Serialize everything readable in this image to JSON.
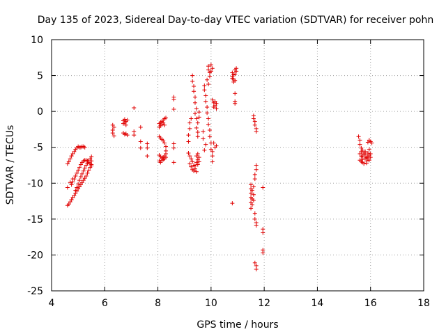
{
  "chart_data": {
    "type": "scatter",
    "title": "Day 135 of 2023, Sidereal Day-to-day VTEC variation (SDTVAR) for receiver pohn",
    "xlabel": "GPS time / hours",
    "ylabel": "SDTVAR / TECUs",
    "xlim": [
      4,
      18
    ],
    "ylim": [
      -25,
      10
    ],
    "xticks": [
      4,
      6,
      8,
      10,
      12,
      14,
      16,
      18
    ],
    "yticks": [
      -25,
      -20,
      -15,
      -10,
      -5,
      0,
      5,
      10
    ],
    "xtick_labels": [
      "4",
      "6",
      "8",
      "10",
      "12",
      "14",
      "16",
      "18"
    ],
    "ytick_labels": [
      "-25",
      "-20",
      "-15",
      "-10",
      "-5",
      "0",
      "5",
      "10"
    ],
    "grid": true,
    "legend": "none",
    "marker": "plus",
    "color": "#e00000",
    "series": [
      {
        "points": [
          [
            4.6,
            -13.1
          ],
          [
            4.65,
            -12.9
          ],
          [
            4.7,
            -12.6
          ],
          [
            4.75,
            -12.3
          ],
          [
            4.8,
            -12.0
          ],
          [
            4.85,
            -11.7
          ],
          [
            4.9,
            -11.4
          ],
          [
            4.95,
            -11.1
          ],
          [
            5.0,
            -10.8
          ],
          [
            5.05,
            -10.5
          ],
          [
            5.1,
            -10.2
          ],
          [
            5.15,
            -9.9
          ],
          [
            5.2,
            -9.6
          ],
          [
            5.25,
            -9.3
          ],
          [
            5.3,
            -9.0
          ],
          [
            5.35,
            -8.6
          ],
          [
            5.4,
            -8.2
          ],
          [
            5.45,
            -7.8
          ],
          [
            5.5,
            -7.4
          ],
          [
            5.5,
            -6.9
          ],
          [
            4.75,
            -10.2
          ],
          [
            4.8,
            -9.8
          ],
          [
            4.85,
            -9.4
          ],
          [
            4.9,
            -9.0
          ],
          [
            4.95,
            -8.6
          ],
          [
            5.0,
            -8.2
          ],
          [
            5.05,
            -7.8
          ],
          [
            5.1,
            -7.4
          ],
          [
            5.15,
            -7.1
          ],
          [
            5.2,
            -6.9
          ],
          [
            5.25,
            -6.8
          ],
          [
            5.3,
            -6.8
          ],
          [
            5.35,
            -6.9
          ],
          [
            5.4,
            -7.1
          ],
          [
            5.45,
            -7.3
          ],
          [
            5.5,
            -7.6
          ],
          [
            4.9,
            -11.0
          ],
          [
            4.95,
            -10.6
          ],
          [
            5.0,
            -10.1
          ],
          [
            5.05,
            -9.6
          ],
          [
            5.1,
            -9.1
          ],
          [
            5.15,
            -8.7
          ],
          [
            5.2,
            -8.3
          ],
          [
            5.25,
            -7.9
          ],
          [
            5.3,
            -7.5
          ],
          [
            5.35,
            -7.2
          ],
          [
            5.4,
            -6.9
          ],
          [
            5.45,
            -6.6
          ],
          [
            5.5,
            -6.3
          ],
          [
            4.6,
            -7.3
          ],
          [
            4.65,
            -7.0
          ],
          [
            4.7,
            -6.6
          ],
          [
            4.75,
            -6.2
          ],
          [
            4.8,
            -5.9
          ],
          [
            4.85,
            -5.6
          ],
          [
            4.9,
            -5.3
          ],
          [
            4.95,
            -5.1
          ],
          [
            5.0,
            -4.9
          ],
          [
            5.05,
            -5.0
          ],
          [
            5.1,
            -5.0
          ],
          [
            5.15,
            -4.9
          ],
          [
            5.2,
            -4.9
          ],
          [
            5.25,
            -5.0
          ],
          [
            4.6,
            -10.6
          ],
          [
            4.7,
            -9.9
          ],
          [
            4.8,
            -9.4
          ]
        ]
      },
      {
        "points": [
          [
            6.3,
            -1.9
          ],
          [
            6.3,
            -2.6
          ],
          [
            6.3,
            -3.0
          ],
          [
            6.35,
            -3.4
          ],
          [
            6.35,
            -2.2
          ],
          [
            6.7,
            -1.3
          ],
          [
            6.7,
            -1.7
          ],
          [
            6.75,
            -1.1
          ],
          [
            6.75,
            -1.5
          ],
          [
            6.8,
            -1.9
          ],
          [
            6.8,
            -1.4
          ],
          [
            6.85,
            -1.2
          ],
          [
            6.7,
            -3.0
          ],
          [
            6.75,
            -3.2
          ],
          [
            6.8,
            -3.1
          ],
          [
            6.85,
            -3.3
          ],
          [
            7.1,
            0.5
          ],
          [
            7.1,
            -2.8
          ],
          [
            7.1,
            -3.3
          ],
          [
            7.35,
            -2.2
          ],
          [
            7.35,
            -4.2
          ],
          [
            7.35,
            -5.1
          ],
          [
            7.6,
            -4.5
          ],
          [
            7.6,
            -5.1
          ],
          [
            7.6,
            -6.2
          ]
        ]
      },
      {
        "points": [
          [
            8.05,
            -1.7
          ],
          [
            8.1,
            -1.5
          ],
          [
            8.15,
            -1.4
          ],
          [
            8.2,
            -1.2
          ],
          [
            8.25,
            -1.0
          ],
          [
            8.3,
            -0.9
          ],
          [
            8.05,
            -2.2
          ],
          [
            8.1,
            -2.0
          ],
          [
            8.15,
            -1.8
          ],
          [
            8.2,
            -1.6
          ],
          [
            8.25,
            -1.9
          ],
          [
            8.05,
            -3.5
          ],
          [
            8.1,
            -3.7
          ],
          [
            8.15,
            -3.9
          ],
          [
            8.2,
            -4.1
          ],
          [
            8.25,
            -4.4
          ],
          [
            8.3,
            -4.9
          ],
          [
            8.3,
            -5.5
          ],
          [
            8.05,
            -6.1
          ],
          [
            8.1,
            -6.3
          ],
          [
            8.15,
            -6.5
          ],
          [
            8.2,
            -6.4
          ],
          [
            8.25,
            -6.2
          ],
          [
            8.3,
            -5.9
          ],
          [
            8.05,
            -6.9
          ],
          [
            8.1,
            -7.1
          ],
          [
            8.15,
            -6.8
          ],
          [
            8.2,
            -6.7
          ],
          [
            8.25,
            -6.6
          ],
          [
            8.3,
            -6.4
          ],
          [
            8.6,
            2.0
          ],
          [
            8.6,
            1.7
          ],
          [
            8.6,
            0.3
          ],
          [
            8.6,
            -4.5
          ],
          [
            8.6,
            -5.1
          ],
          [
            8.6,
            -7.1
          ]
        ]
      },
      {
        "points": [
          [
            9.15,
            -5.8
          ],
          [
            9.2,
            -6.2
          ],
          [
            9.25,
            -6.6
          ],
          [
            9.3,
            -7.0
          ],
          [
            9.35,
            -7.5
          ],
          [
            9.4,
            -8.0
          ],
          [
            9.45,
            -8.4
          ],
          [
            9.2,
            -7.3
          ],
          [
            9.25,
            -7.7
          ],
          [
            9.3,
            -8.1
          ],
          [
            9.35,
            -8.3
          ],
          [
            9.4,
            -7.6
          ],
          [
            9.45,
            -7.1
          ],
          [
            9.5,
            -6.7
          ],
          [
            9.55,
            -6.4
          ],
          [
            9.5,
            -7.4
          ],
          [
            9.55,
            -7.0
          ],
          [
            9.45,
            -6.2
          ],
          [
            9.5,
            -5.9
          ],
          [
            9.3,
            5.0
          ],
          [
            9.3,
            4.2
          ],
          [
            9.35,
            3.5
          ],
          [
            9.35,
            2.8
          ],
          [
            9.4,
            2.0
          ],
          [
            9.4,
            1.2
          ],
          [
            9.45,
            0.4
          ],
          [
            9.4,
            -0.3
          ],
          [
            9.45,
            -1.0
          ],
          [
            9.5,
            -1.6
          ],
          [
            9.45,
            -2.3
          ],
          [
            9.5,
            -2.9
          ],
          [
            9.5,
            -3.5
          ],
          [
            9.55,
            -0.8
          ],
          [
            9.55,
            -0.1
          ],
          [
            9.2,
            -1.6
          ],
          [
            9.2,
            -2.4
          ],
          [
            9.15,
            -3.3
          ],
          [
            9.15,
            -4.2
          ],
          [
            9.25,
            -1.0
          ],
          [
            9.75,
            3.6
          ],
          [
            9.75,
            3.0
          ],
          [
            9.8,
            2.2
          ],
          [
            9.8,
            1.4
          ],
          [
            9.85,
            0.6
          ],
          [
            9.85,
            -0.2
          ],
          [
            9.9,
            -1.0
          ],
          [
            9.9,
            -1.8
          ],
          [
            9.95,
            -2.6
          ],
          [
            9.95,
            -3.5
          ],
          [
            10.0,
            -4.4
          ],
          [
            10.0,
            -5.3
          ],
          [
            10.05,
            -6.2
          ],
          [
            10.05,
            -7.0
          ],
          [
            9.8,
            -4.6
          ],
          [
            9.75,
            -5.4
          ],
          [
            9.7,
            -3.8
          ],
          [
            9.7,
            -2.8
          ],
          [
            9.9,
            6.3
          ],
          [
            9.9,
            5.8
          ],
          [
            9.95,
            5.4
          ],
          [
            9.95,
            4.9
          ],
          [
            10.0,
            6.5
          ],
          [
            10.0,
            5.6
          ],
          [
            9.85,
            4.4
          ],
          [
            9.9,
            3.8
          ],
          [
            10.05,
            6.0
          ],
          [
            10.05,
            1.6
          ],
          [
            10.1,
            1.2
          ],
          [
            10.15,
            0.8
          ],
          [
            10.1,
            0.6
          ],
          [
            10.2,
            1.1
          ],
          [
            10.2,
            0.4
          ],
          [
            10.15,
            1.4
          ],
          [
            10.1,
            -4.4
          ],
          [
            10.15,
            -5.0
          ],
          [
            10.05,
            -5.6
          ],
          [
            10.2,
            -4.8
          ]
        ]
      },
      {
        "points": [
          [
            10.8,
            5.4
          ],
          [
            10.8,
            4.9
          ],
          [
            10.85,
            4.5
          ],
          [
            10.85,
            4.1
          ],
          [
            10.9,
            5.8
          ],
          [
            10.9,
            5.2
          ],
          [
            10.95,
            6.0
          ],
          [
            10.95,
            5.6
          ],
          [
            10.8,
            4.6
          ],
          [
            10.9,
            4.3
          ],
          [
            10.85,
            5.1
          ],
          [
            10.9,
            2.5
          ],
          [
            10.9,
            1.4
          ],
          [
            10.9,
            1.1
          ],
          [
            10.8,
            -12.8
          ]
        ]
      },
      {
        "points": [
          [
            11.5,
            -10.2
          ],
          [
            11.5,
            -10.8
          ],
          [
            11.5,
            -11.4
          ],
          [
            11.5,
            -12.0
          ],
          [
            11.5,
            -12.7
          ],
          [
            11.5,
            -13.5
          ],
          [
            11.55,
            -11.0
          ],
          [
            11.55,
            -12.2
          ],
          [
            11.55,
            -13.0
          ],
          [
            11.6,
            -10.5
          ],
          [
            11.6,
            -11.6
          ],
          [
            11.6,
            -12.4
          ],
          [
            11.65,
            -14.2
          ],
          [
            11.65,
            -15.0
          ],
          [
            11.7,
            -15.5
          ],
          [
            11.7,
            -15.9
          ],
          [
            11.6,
            -0.6
          ],
          [
            11.6,
            -1.0
          ],
          [
            11.65,
            -1.4
          ],
          [
            11.65,
            -1.9
          ],
          [
            11.7,
            -2.4
          ],
          [
            11.7,
            -2.8
          ],
          [
            11.7,
            -7.5
          ],
          [
            11.7,
            -8.1
          ],
          [
            11.65,
            -8.8
          ],
          [
            11.65,
            -9.4
          ],
          [
            11.95,
            -10.6
          ],
          [
            11.95,
            -16.4
          ],
          [
            11.95,
            -16.9
          ],
          [
            11.95,
            -19.3
          ],
          [
            11.95,
            -19.7
          ],
          [
            11.65,
            -21.1
          ],
          [
            11.7,
            -21.5
          ],
          [
            11.7,
            -22.0
          ]
        ]
      },
      {
        "points": [
          [
            15.55,
            -3.5
          ],
          [
            15.6,
            -4.0
          ],
          [
            15.6,
            -4.6
          ],
          [
            15.65,
            -5.1
          ],
          [
            15.65,
            -5.6
          ],
          [
            15.6,
            -5.9
          ],
          [
            15.65,
            -6.3
          ],
          [
            15.7,
            -6.7
          ],
          [
            15.7,
            -7.1
          ],
          [
            15.75,
            -7.3
          ],
          [
            15.75,
            -6.0
          ],
          [
            15.8,
            -5.6
          ],
          [
            15.8,
            -6.5
          ],
          [
            15.85,
            -6.9
          ],
          [
            15.85,
            -7.2
          ],
          [
            15.9,
            -6.3
          ],
          [
            15.9,
            -5.8
          ],
          [
            15.95,
            -5.3
          ],
          [
            15.95,
            -6.1
          ],
          [
            16.0,
            -6.4
          ],
          [
            15.7,
            -5.4
          ],
          [
            15.75,
            -5.8
          ],
          [
            15.8,
            -6.0
          ],
          [
            15.85,
            -6.4
          ],
          [
            15.9,
            -6.6
          ],
          [
            15.95,
            -6.8
          ],
          [
            16.0,
            -5.9
          ],
          [
            15.6,
            -6.8
          ],
          [
            15.65,
            -7.0
          ],
          [
            15.7,
            -6.2
          ],
          [
            15.9,
            -4.3
          ],
          [
            15.95,
            -4.0
          ],
          [
            16.0,
            -4.2
          ],
          [
            16.05,
            -4.4
          ]
        ]
      }
    ]
  }
}
